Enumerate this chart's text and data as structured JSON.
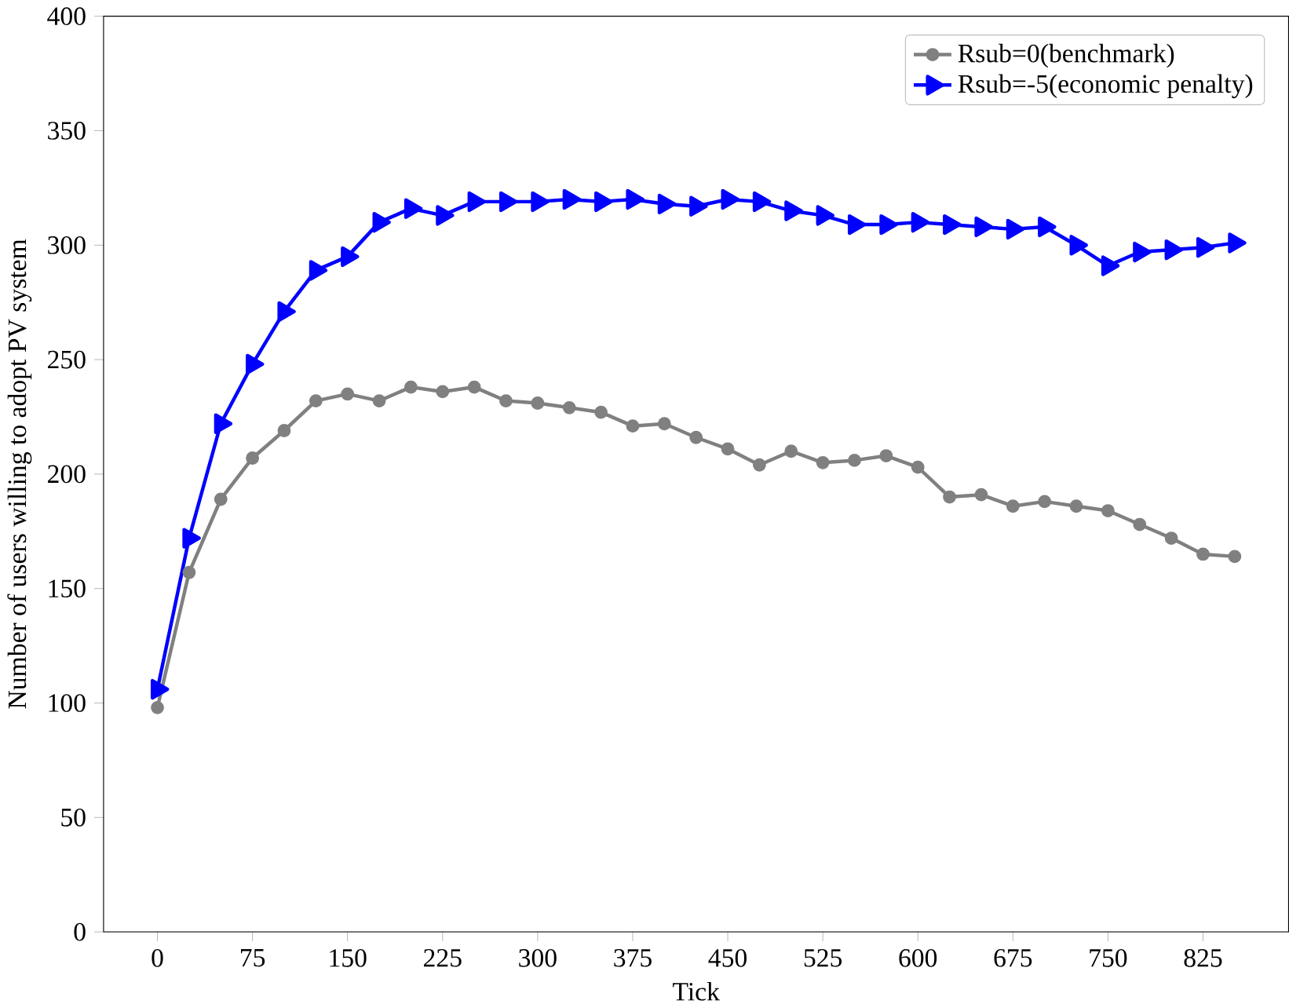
{
  "chart_data": {
    "type": "line",
    "xlabel": "Tick",
    "ylabel": "Number of users willing to adopt PV system",
    "x": [
      0,
      25,
      50,
      75,
      100,
      125,
      150,
      175,
      200,
      225,
      250,
      275,
      300,
      325,
      350,
      375,
      400,
      425,
      450,
      475,
      500,
      525,
      550,
      575,
      600,
      625,
      650,
      675,
      700,
      725,
      750,
      775,
      800,
      825,
      850
    ],
    "series": [
      {
        "name": "Rsub=0(benchmark)",
        "color": "#808080",
        "marker": "circle",
        "values": [
          98,
          157,
          189,
          207,
          219,
          232,
          235,
          232,
          238,
          236,
          238,
          232,
          231,
          229,
          227,
          221,
          222,
          216,
          211,
          204,
          210,
          205,
          206,
          208,
          203,
          190,
          191,
          186,
          188,
          186,
          184,
          178,
          172,
          165,
          164
        ]
      },
      {
        "name": "Rsub=-5(economic penalty)",
        "color": "#0000ff",
        "marker": "triangle",
        "values": [
          106,
          172,
          222,
          248,
          271,
          289,
          295,
          310,
          316,
          313,
          319,
          319,
          319,
          320,
          319,
          320,
          318,
          317,
          320,
          319,
          315,
          313,
          309,
          309,
          310,
          309,
          308,
          307,
          308,
          300,
          291,
          297,
          298,
          299,
          301
        ]
      }
    ],
    "xlim": [
      -42.5,
      892.5
    ],
    "ylim": [
      0,
      400
    ],
    "xticks": [
      0,
      75,
      150,
      225,
      300,
      375,
      450,
      525,
      600,
      675,
      750,
      825
    ],
    "yticks": [
      0,
      50,
      100,
      150,
      200,
      250,
      300,
      350,
      400
    ],
    "legend": "top right",
    "grid": false
  }
}
